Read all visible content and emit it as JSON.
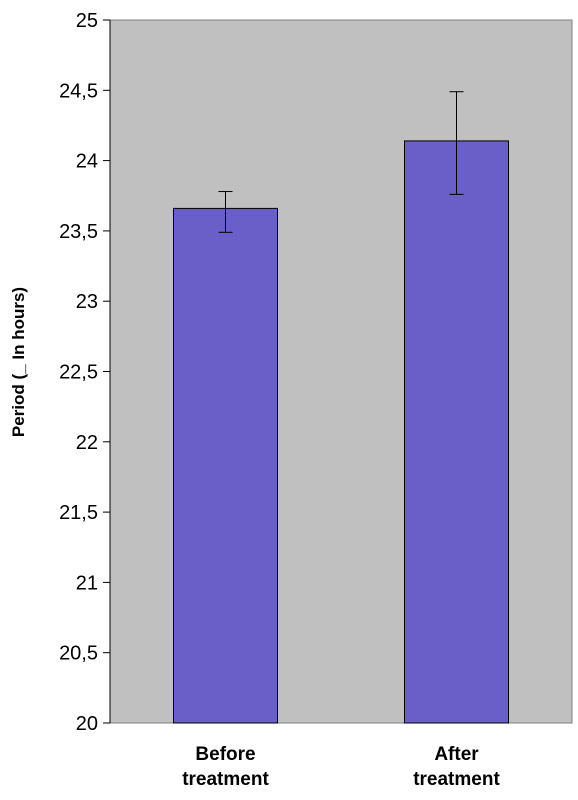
{
  "chart_data": {
    "type": "bar",
    "categories": [
      "Before treatment",
      "After treatment"
    ],
    "category_lines": [
      [
        "Before",
        "treatment"
      ],
      [
        "After",
        "treatment"
      ]
    ],
    "values": [
      23.66,
      24.14
    ],
    "error_low": [
      23.49,
      23.76
    ],
    "error_high": [
      23.78,
      24.49
    ],
    "title": "",
    "xlabel": "",
    "ylabel": "Period (_ In hours)",
    "ylim": [
      20,
      25
    ],
    "yticks": [
      20,
      20.5,
      21,
      21.5,
      22,
      22.5,
      23,
      23.5,
      24,
      24.5,
      25
    ],
    "ytick_labels": [
      "20",
      "20,5",
      "21",
      "21,5",
      "22",
      "22,5",
      "23",
      "23,5",
      "24",
      "24,5",
      "25"
    ],
    "grid": false,
    "legend": "none",
    "colors": {
      "bar": "#6a5fc8",
      "plot_background": "#c0c0c0",
      "plot_border": "#808080"
    }
  }
}
